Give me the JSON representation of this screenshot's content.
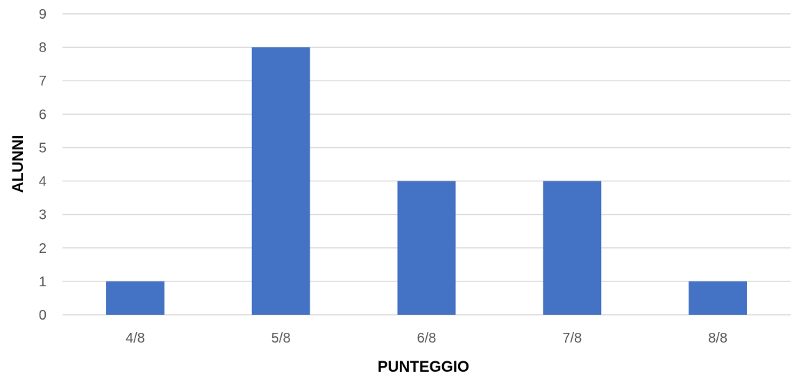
{
  "chart_data": {
    "type": "bar",
    "categories": [
      "4/8",
      "5/8",
      "6/8",
      "7/8",
      "8/8"
    ],
    "values": [
      1,
      8,
      4,
      4,
      1
    ],
    "title": "",
    "xlabel": "PUNTEGGIO",
    "ylabel": "ALUNNI",
    "ylim": [
      0,
      9
    ],
    "yticks": [
      0,
      1,
      2,
      3,
      4,
      5,
      6,
      7,
      8,
      9
    ],
    "grid": true,
    "legend": "none",
    "bar_color": "#4472c4"
  }
}
